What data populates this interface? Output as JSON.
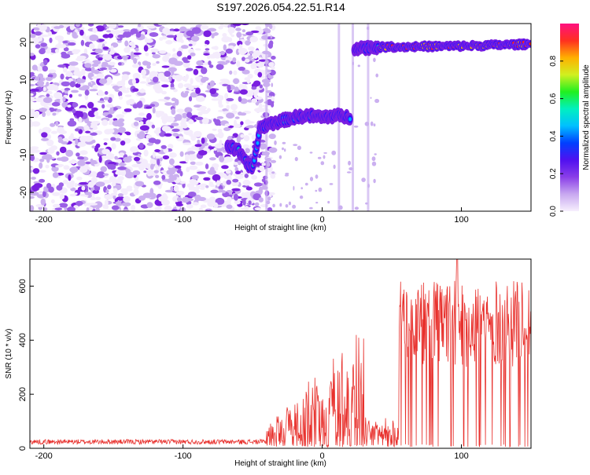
{
  "title": "S197.2026.054.22.51.R14",
  "colors": {
    "snr_line": "#e8302c",
    "frame": "#000000",
    "colormap": [
      "#f4ecfc",
      "#cbb0f0",
      "#9a5ee6",
      "#7a1fe0",
      "#2b10ff",
      "#00a8ff",
      "#00e8b0",
      "#30f030",
      "#e0f020",
      "#ffb000",
      "#ff2020",
      "#ff1080"
    ]
  },
  "chart_data": [
    {
      "type": "heatmap",
      "xlabel": "Height of straight line (km)",
      "ylabel": "Frequency (Hz)",
      "xlim": [
        -210,
        150
      ],
      "ylim": [
        -25,
        25
      ],
      "xticks": [
        -200,
        -100,
        0,
        100
      ],
      "yticks": [
        -20,
        -10,
        0,
        10,
        20
      ],
      "colorbar": {
        "label": "Normalized spectral amplitude",
        "range": [
          0,
          1
        ],
        "ticks": [
          "0.0",
          "0.2",
          "0.4",
          "0.6",
          "0.8"
        ]
      },
      "ridge": [
        {
          "x": -68,
          "y": -7.5
        },
        {
          "x": -60,
          "y": -9
        },
        {
          "x": -55,
          "y": -12
        },
        {
          "x": -50,
          "y": -13.5
        },
        {
          "x": -47,
          "y": -8
        },
        {
          "x": -45,
          "y": -3
        },
        {
          "x": -40,
          "y": -2
        },
        {
          "x": -30,
          "y": -1
        },
        {
          "x": -20,
          "y": 0
        },
        {
          "x": -10,
          "y": 0.5
        },
        {
          "x": 0,
          "y": 0
        },
        {
          "x": 10,
          "y": 0.5
        },
        {
          "x": 20,
          "y": 0
        },
        {
          "x": 23,
          "y": 18.5
        },
        {
          "x": 50,
          "y": 18.8
        },
        {
          "x": 100,
          "y": 19
        },
        {
          "x": 150,
          "y": 19.5
        }
      ],
      "grid": false,
      "legend": "colorbar-right"
    },
    {
      "type": "line",
      "xlabel": "Height of straight line (km)",
      "ylabel": "SNR (10 * v/v)",
      "xlim": [
        -210,
        150
      ],
      "ylim": [
        0,
        700
      ],
      "xticks": [
        -200,
        -100,
        0,
        100
      ],
      "yticks": [
        0,
        200,
        400,
        600
      ],
      "segments": [
        {
          "x_start": -210,
          "x_end": -40,
          "base": 20,
          "amplitude": 10
        },
        {
          "x_start": -40,
          "x_end": 55,
          "base": 60,
          "amplitude": 420,
          "note_peak_near": 25
        },
        {
          "x_start": 55,
          "x_end": 150,
          "base": 420,
          "amplitude": 280,
          "peak": {
            "x": 97,
            "y": 700
          }
        }
      ],
      "grid": false,
      "legend": "none"
    }
  ]
}
